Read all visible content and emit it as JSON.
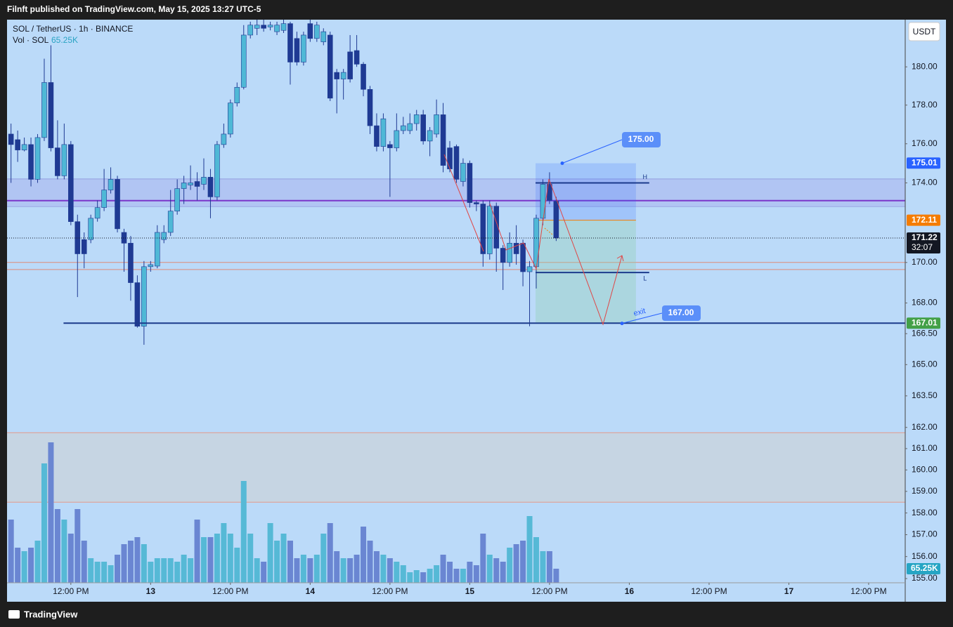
{
  "header": {
    "text": "Filnft published on TradingView.com, May 15, 2025 13:27 UTC-5"
  },
  "chart_data": {
    "type": "candlestick",
    "title": "SOL / TetherUS · 1h · BINANCE",
    "currency": "USDT",
    "log": true,
    "grid": false,
    "up_color": "#4fb8d6",
    "down_color": "#1f3a93",
    "x": [
      3,
      4,
      5,
      6,
      7,
      8,
      9,
      10,
      11,
      12,
      13,
      14,
      15,
      16,
      17,
      18,
      19,
      20,
      21,
      22,
      23,
      24,
      25,
      26,
      27,
      28,
      29,
      30,
      31,
      32,
      33,
      34,
      35,
      36,
      37,
      38,
      39,
      40,
      41,
      42,
      43,
      44,
      45,
      46,
      47,
      48,
      49,
      50,
      51,
      52,
      53,
      54,
      55,
      56,
      57,
      58,
      59,
      60,
      61,
      62,
      63,
      64,
      65,
      66,
      67,
      68,
      69,
      70,
      71,
      72,
      73,
      74,
      75,
      76,
      77,
      78,
      79,
      80,
      81,
      82,
      83,
      84,
      85
    ],
    "open": [
      176.5,
      176.21,
      175.68,
      175.96,
      174.18,
      176.32,
      179.18,
      175.79,
      174.36,
      175.96,
      172.04,
      171.14,
      171.14,
      172.21,
      172.75,
      173.64,
      174.18,
      171.5,
      170.96,
      169.0,
      166.86,
      169.79,
      169.82,
      171.14,
      171.5,
      172.57,
      173.71,
      173.89,
      174.07,
      173.93,
      174.29,
      173.29,
      175.96,
      176.5,
      178.11,
      178.93,
      181.68,
      182.04,
      182.21,
      182.11,
      181.86,
      181.93,
      182.29,
      181.5,
      180.25,
      182.29,
      181.5,
      181.32,
      181.68,
      179.71,
      179.36,
      180.79,
      180.86,
      180.14,
      178.82,
      176.93,
      175.86,
      175.96,
      175.79,
      176.68,
      176.68,
      177.04,
      177.5,
      176.14,
      176.5,
      177.5,
      175.79,
      175.86,
      174.07,
      175.0,
      173.0,
      172.93,
      170.43,
      172.82,
      170.71,
      170.0,
      170.96,
      170.96,
      169.54,
      169.79,
      172.21,
      173.93,
      173.07
    ],
    "high": [
      177.04,
      176.68,
      176.32,
      176.32,
      176.5,
      180.43,
      181.14,
      177.21,
      177.04,
      176.14,
      172.39,
      171.5,
      172.39,
      173.11,
      174.71,
      174.79,
      174.36,
      171.68,
      171.32,
      169.36,
      170.07,
      170.07,
      171.86,
      171.86,
      173.64,
      174.18,
      174.36,
      174.89,
      174.54,
      175.25,
      174.71,
      176.14,
      177.04,
      178.29,
      179.18,
      182.21,
      182.39,
      182.57,
      182.5,
      182.39,
      182.39,
      182.5,
      182.39,
      181.86,
      181.86,
      182.5,
      182.39,
      182.04,
      181.86,
      179.89,
      179.89,
      181.68,
      181.68,
      180.25,
      179.0,
      177.57,
      177.57,
      176.14,
      177.57,
      177.39,
      177.57,
      177.75,
      177.75,
      176.86,
      178.29,
      178.11,
      176.14,
      175.96,
      175.25,
      175.14,
      173.11,
      173.11,
      173.11,
      173.0,
      170.86,
      171.5,
      171.86,
      171.14,
      170.07,
      172.39,
      174.18,
      174.54,
      173.29
    ],
    "low": [
      174.0,
      175.07,
      175.61,
      173.82,
      174.0,
      176.14,
      175.61,
      174.18,
      174.18,
      171.86,
      168.29,
      169.71,
      170.96,
      172.04,
      172.57,
      173.46,
      171.5,
      169.54,
      168.11,
      166.79,
      165.96,
      169.54,
      169.71,
      170.96,
      171.32,
      172.39,
      172.93,
      173.64,
      173.11,
      173.64,
      172.21,
      173.11,
      175.79,
      176.32,
      177.93,
      178.82,
      181.5,
      181.68,
      181.86,
      181.93,
      181.68,
      181.79,
      179.07,
      180.07,
      180.07,
      181.32,
      181.32,
      181.14,
      178.21,
      177.57,
      178.29,
      179.18,
      180.0,
      178.46,
      176.5,
      175.61,
      175.61,
      173.29,
      175.61,
      176.5,
      176.5,
      176.68,
      175.96,
      175.36,
      176.32,
      174.54,
      174.54,
      174.0,
      173.82,
      172.75,
      172.57,
      169.79,
      170.14,
      169.54,
      168.64,
      169.79,
      169.89,
      168.82,
      166.86,
      168.71,
      171.86,
      172.93,
      171.07
    ],
    "close": [
      175.96,
      175.68,
      175.96,
      174.18,
      176.32,
      179.18,
      175.79,
      174.36,
      175.96,
      172.04,
      170.43,
      170.43,
      172.21,
      172.75,
      173.64,
      174.18,
      171.68,
      170.96,
      169.0,
      166.86,
      169.79,
      169.89,
      171.5,
      171.5,
      172.57,
      173.71,
      174.0,
      174.0,
      173.82,
      174.29,
      173.29,
      175.96,
      176.5,
      178.11,
      178.93,
      181.68,
      182.21,
      182.21,
      182.04,
      182.21,
      182.21,
      182.29,
      180.25,
      180.25,
      181.68,
      181.5,
      182.21,
      181.86,
      178.36,
      179.36,
      179.71,
      179.36,
      180.14,
      178.82,
      176.93,
      175.86,
      177.29,
      175.79,
      176.68,
      176.93,
      177.04,
      177.5,
      176.14,
      176.68,
      177.5,
      174.89,
      174.71,
      174.18,
      175.0,
      173.0,
      172.93,
      170.43,
      172.82,
      170.71,
      170.0,
      170.96,
      170.43,
      169.54,
      169.79,
      172.21,
      173.93,
      173.11,
      171.22
    ],
    "series": [
      {
        "name": "Vol · SOL",
        "axis": "y2",
        "up_color": "#56b9d6",
        "down_color": "#6a86d2",
        "values": [
          293400,
          163000,
          146700,
          163000,
          195600,
          554200,
          652000,
          342300,
          293400,
          228200,
          342300,
          195600,
          114100,
          97800,
          97800,
          81500,
          130400,
          179300,
          195600,
          211900,
          179300,
          97800,
          114100,
          114100,
          114100,
          97800,
          130400,
          114100,
          293400,
          211900,
          211900,
          228200,
          277100,
          228200,
          163000,
          472700,
          228200,
          114100,
          97800,
          277100,
          195600,
          228200,
          195600,
          114100,
          130400,
          114100,
          130400,
          228200,
          277100,
          146700,
          114100,
          114100,
          130400,
          260800,
          195600,
          146700,
          130400,
          114100,
          97800,
          81500,
          48900,
          58680,
          48900,
          65200,
          81500,
          130400,
          97800,
          65200,
          65200,
          97800,
          81500,
          228200,
          130400,
          114100,
          97800,
          163000,
          179300,
          195600,
          309700,
          211900,
          146700,
          146700,
          65250
        ],
        "value_labels": [
          null,
          null,
          null,
          null,
          null,
          null,
          null,
          null,
          null,
          null,
          null,
          null,
          null,
          null,
          null,
          null,
          null,
          null,
          null,
          null,
          null,
          null,
          null,
          null,
          null,
          null,
          null,
          null,
          null,
          null,
          null,
          null,
          null,
          null,
          null,
          null,
          null,
          null,
          null,
          null,
          null,
          null,
          null,
          null,
          null,
          null,
          null,
          null,
          null,
          null,
          null,
          null,
          null,
          null,
          null,
          null,
          null,
          null,
          null,
          null,
          null,
          null,
          null,
          null,
          null,
          null,
          null,
          null,
          null,
          null,
          null,
          null,
          null,
          null,
          null,
          null,
          null,
          null,
          null,
          null,
          null,
          null,
          "65.25K"
        ]
      }
    ],
    "xlim": [
      2.4,
      137.5
    ],
    "xticks": [
      {
        "value": 12,
        "label": "12:00 PM"
      },
      {
        "value": 24,
        "label": "13"
      },
      {
        "value": 36,
        "label": "12:00 PM"
      },
      {
        "value": 48,
        "label": "14"
      },
      {
        "value": 60,
        "label": "12:00 PM"
      },
      {
        "value": 72,
        "label": "15"
      },
      {
        "value": 84,
        "label": "12:00 PM"
      },
      {
        "value": 96,
        "label": "16"
      },
      {
        "value": 108,
        "label": "12:00 PM"
      },
      {
        "value": 120,
        "label": "17"
      },
      {
        "value": 132,
        "label": "12:00 PM"
      }
    ],
    "ylim": [
      154.81,
      182.5
    ],
    "yticks": [
      {
        "value": 155,
        "label": "155.00"
      },
      {
        "value": 156,
        "label": "156.00"
      },
      {
        "value": 157,
        "label": "157.00"
      },
      {
        "value": 158,
        "label": "158.00"
      },
      {
        "value": 159,
        "label": "159.00"
      },
      {
        "value": 160,
        "label": "160.00"
      },
      {
        "value": 161,
        "label": "161.00"
      },
      {
        "value": 162,
        "label": "162.00"
      },
      {
        "value": 163.5,
        "label": "163.50"
      },
      {
        "value": 165,
        "label": "165.00"
      },
      {
        "value": 166.5,
        "label": "166.50"
      },
      {
        "value": 168,
        "label": "168.00"
      },
      {
        "value": 170,
        "label": "170.00"
      },
      {
        "value": 174,
        "label": "174.00"
      },
      {
        "value": 176,
        "label": "176.00"
      },
      {
        "value": 178,
        "label": "178.00"
      },
      {
        "value": 180,
        "label": "180.00"
      }
    ],
    "y2lim": [
      0,
      2614520
    ],
    "price_badges": [
      {
        "value": 175.01,
        "color": "#2962ff"
      },
      {
        "value": 172.11,
        "color": "#f57c00"
      },
      {
        "value": 171.22,
        "color": "#131722"
      },
      {
        "value": 167.01,
        "color": "#43a047"
      }
    ],
    "countdown": "32:07",
    "drawings": {
      "zone": {
        "low": 172.8,
        "high": 174.2,
        "color": "#a9b4ee"
      },
      "levels": [
        {
          "value": 173.1,
          "color": "#7b35c9"
        },
        {
          "value": 170.0,
          "color": "#e08a78"
        },
        {
          "value": 169.65,
          "color": "#e08a78"
        }
      ],
      "volume_box": {
        "low": 158.5,
        "high": 161.75,
        "color": "#c6d5e3"
      },
      "position": {
        "x": [
          81.9,
          97
        ],
        "target": 175.0,
        "entry": 172.11,
        "stop": 167.0
      },
      "hlines": [
        {
          "value": 174.0,
          "x": [
            81.9,
            99
          ],
          "label": "H"
        },
        {
          "value": 169.5,
          "x": [
            81.9,
            99
          ],
          "label": "L"
        },
        {
          "value": 167.01,
          "x": [
            10.9,
            137.5
          ]
        }
      ],
      "callouts": [
        {
          "value": 175.0,
          "label": "175.00"
        },
        {
          "value": 167.0,
          "label": "167.00",
          "note": "exit"
        }
      ]
    }
  },
  "footer": {
    "brand": "TradingView"
  }
}
